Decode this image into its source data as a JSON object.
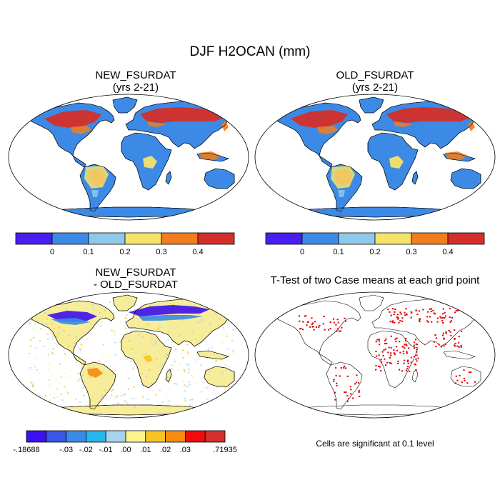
{
  "figure": {
    "title": "DJF H2OCAN (mm)"
  },
  "panels": {
    "new": {
      "title_line1": "NEW_FSURDAT",
      "title_line2": "(yrs 2-21)"
    },
    "old": {
      "title_line1": "OLD_FSURDAT",
      "title_line2": "(yrs 2-21)"
    },
    "diff": {
      "title_line1": "NEW_FSURDAT",
      "title_line2": "- OLD_FSURDAT"
    },
    "ttest": {
      "title": "T-Test of two Case means at each grid point",
      "note": "Cells are significant at 0.1 level"
    }
  },
  "colorbar_main": {
    "colors": [
      "#4a1ef0",
      "#3c8ae6",
      "#8ec9ec",
      "#f6e36a",
      "#f27d1c",
      "#d42f2a"
    ],
    "labels": [
      "0",
      "0.1",
      "0.2",
      "0.3",
      "0.4"
    ]
  },
  "colorbar_diff": {
    "colors": [
      "#3c10f0",
      "#3a56e6",
      "#3a8ae6",
      "#26b6ee",
      "#a6d4ee",
      "#fbf48a",
      "#f8c422",
      "#f88a10",
      "#f00c0c",
      "#d42f2a"
    ],
    "labels": [
      "-.18688",
      "-.03",
      "-.02",
      "-.01",
      ".00",
      ".01",
      ".02",
      ".03",
      ".71935"
    ]
  },
  "map_colors": {
    "ocean": "#ffffff",
    "coast": "#000000",
    "land_base": "#3c8ae6",
    "diff_base": "#f6ec9a",
    "signif": "#e00000"
  }
}
